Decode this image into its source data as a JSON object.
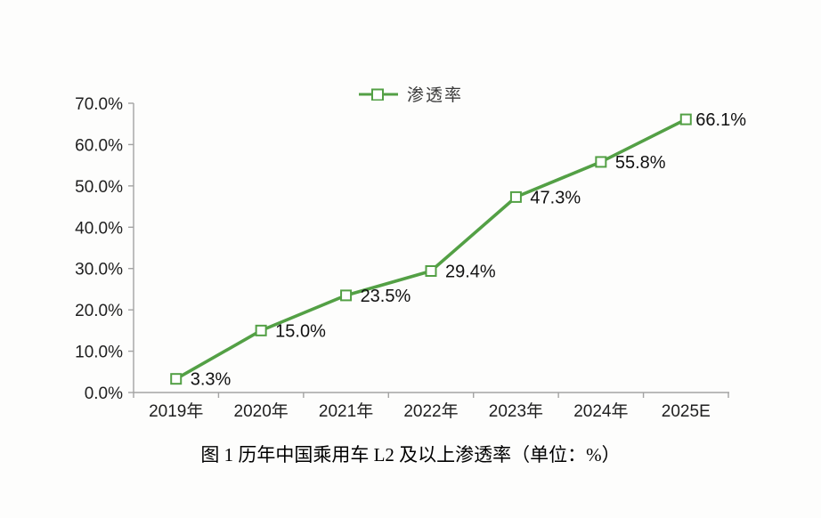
{
  "colors": {
    "line": "#53a045",
    "marker_fill": "#ffffff",
    "axis": "#a3a3a3",
    "text": "#1f1f1f",
    "background": "#fdfdfc"
  },
  "legend": {
    "label": "渗透率"
  },
  "caption": "图 1 历年中国乘用车 L2 及以上渗透率（单位：%）",
  "chart_data": {
    "type": "line",
    "title": "图 1 历年中国乘用车 L2 及以上渗透率（单位：%）",
    "categories": [
      "2019年",
      "2020年",
      "2021年",
      "2022年",
      "2023年",
      "2024年",
      "2025E"
    ],
    "series": [
      {
        "name": "渗透率",
        "values": [
          3.3,
          15.0,
          23.5,
          29.4,
          47.3,
          55.8,
          66.1
        ]
      }
    ],
    "data_labels": [
      "3.3%",
      "15.0%",
      "23.5%",
      "29.4%",
      "47.3%",
      "55.8%",
      "66.1%"
    ],
    "xlabel": "",
    "ylabel": "",
    "ylim": [
      0,
      70
    ],
    "ytick_step": 10,
    "ytick_labels": [
      "0.0%",
      "10.0%",
      "20.0%",
      "30.0%",
      "40.0%",
      "50.0%",
      "60.0%",
      "70.0%"
    ],
    "legend_position": "top",
    "grid": false,
    "marker": "hollow-square"
  }
}
